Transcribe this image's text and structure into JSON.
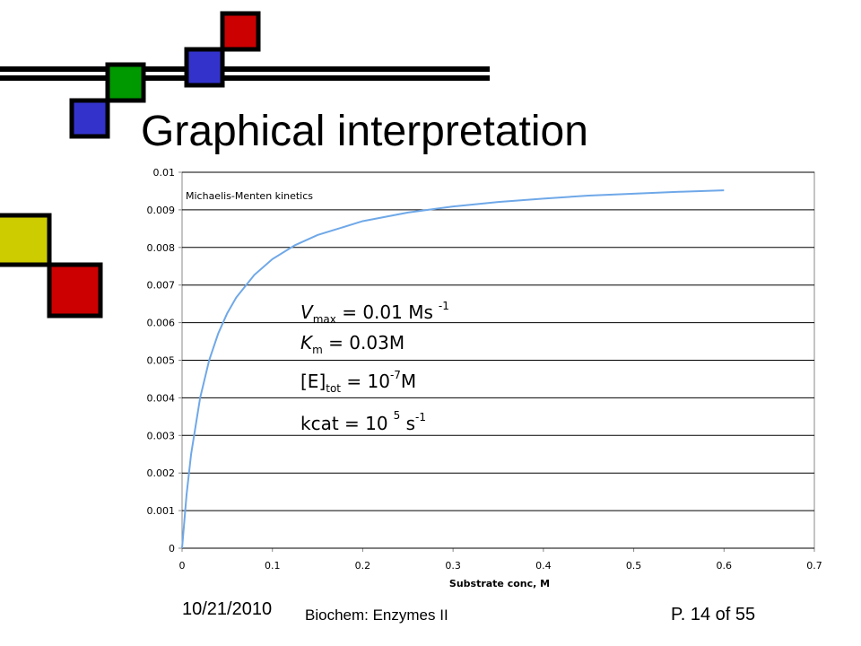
{
  "slide": {
    "title": "Graphical interpretation",
    "date": "10/21/2010",
    "course": "Biochem: Enzymes II",
    "page": "P. 14 of 55"
  },
  "chart_data": {
    "type": "line",
    "title": "Michaelis-Menten kinetics",
    "x_label": "Substrate conc, M",
    "x": [
      0,
      0.005,
      0.01,
      0.02,
      0.03,
      0.04,
      0.05,
      0.06,
      0.08,
      0.1,
      0.125,
      0.15,
      0.2,
      0.25,
      0.3,
      0.35,
      0.4,
      0.45,
      0.5,
      0.55,
      0.6
    ],
    "series": [
      {
        "color": "#6fa8e8",
        "values": [
          0,
          0.00143,
          0.0025,
          0.004,
          0.005,
          0.00571,
          0.00625,
          0.00667,
          0.00727,
          0.00769,
          0.00806,
          0.00833,
          0.0087,
          0.00893,
          0.00909,
          0.00921,
          0.0093,
          0.00938,
          0.00943,
          0.00948,
          0.00952
        ]
      }
    ],
    "xlim": [
      0,
      0.7
    ],
    "xticks": [
      0,
      0.1,
      0.2,
      0.3,
      0.4,
      0.5,
      0.6,
      0.7
    ],
    "ylim": [
      0,
      0.01
    ],
    "yticks": [
      0,
      0.001,
      0.002,
      0.003,
      0.004,
      0.005,
      0.006,
      0.007,
      0.008,
      0.009,
      0.01
    ],
    "grid": true,
    "annotations": [
      [
        "V",
        "max",
        " = 0.01 Ms",
        "-1"
      ],
      [
        "K",
        "m",
        " = 0.03M"
      ],
      [
        "[E]",
        "tot",
        " = 10",
        "-7",
        "M"
      ],
      [
        "kcat = 10",
        "5",
        " s",
        "-1"
      ]
    ]
  }
}
